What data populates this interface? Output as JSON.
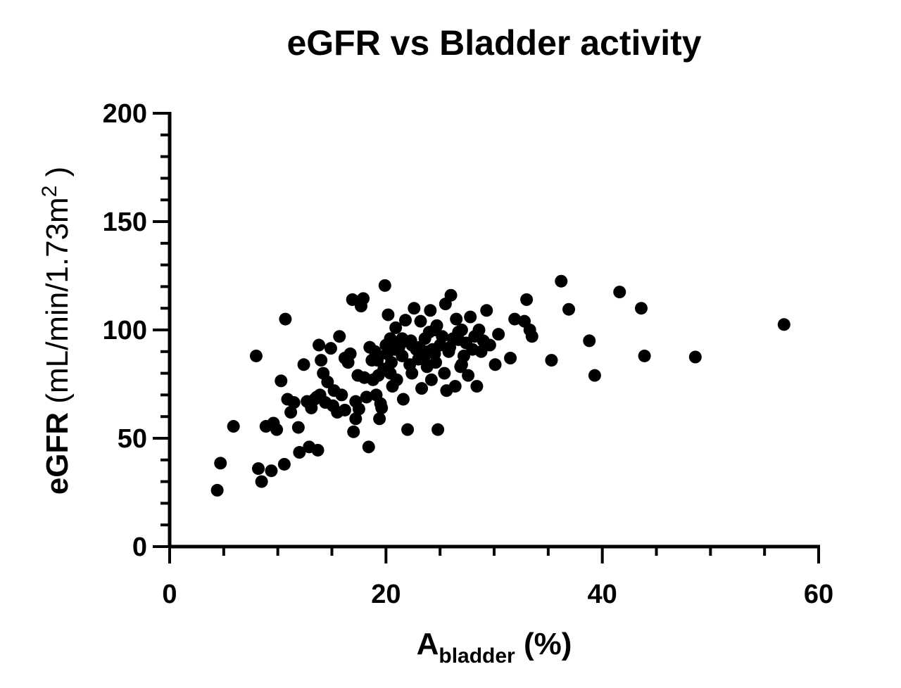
{
  "chart_data": {
    "type": "scatter",
    "title": "eGFR vs Bladder activity",
    "xlabel": {
      "main": "A",
      "sub": "bladder",
      "rest": " (%)"
    },
    "ylabel": {
      "bold": "eGFR",
      "rest": " (mL/min/1.73m",
      "sup": "2",
      "tail": " )"
    },
    "xlim": [
      0,
      60
    ],
    "ylim": [
      0,
      200
    ],
    "x_ticks": [
      0,
      20,
      40,
      60
    ],
    "y_ticks": [
      0,
      50,
      100,
      150,
      200
    ],
    "x_tick_labels": [
      "0",
      "20",
      "40",
      "60"
    ],
    "y_tick_labels": [
      "0",
      "50",
      "100",
      "150",
      "200"
    ],
    "grid": false,
    "legend": "none",
    "marker_color": "#000000",
    "points": [
      [
        4.4,
        26
      ],
      [
        4.7,
        38.5
      ],
      [
        5.9,
        55.5
      ],
      [
        8.0,
        88
      ],
      [
        8.2,
        36
      ],
      [
        8.5,
        30
      ],
      [
        8.9,
        55.5
      ],
      [
        9.4,
        35
      ],
      [
        9.6,
        57
      ],
      [
        9.9,
        54
      ],
      [
        10.3,
        76.5
      ],
      [
        10.6,
        38
      ],
      [
        10.7,
        105
      ],
      [
        10.9,
        68
      ],
      [
        11.2,
        62
      ],
      [
        11.5,
        66.5
      ],
      [
        11.9,
        55
      ],
      [
        12.0,
        43.5
      ],
      [
        12.4,
        84
      ],
      [
        12.7,
        67
      ],
      [
        12.9,
        46
      ],
      [
        13.1,
        64
      ],
      [
        13.4,
        68
      ],
      [
        13.7,
        44.5
      ],
      [
        13.8,
        93
      ],
      [
        13.9,
        70
      ],
      [
        14.0,
        86
      ],
      [
        14.2,
        80
      ],
      [
        14.4,
        66.5
      ],
      [
        14.6,
        76
      ],
      [
        14.9,
        91.5
      ],
      [
        15.2,
        72
      ],
      [
        15.5,
        62
      ],
      [
        15.7,
        97
      ],
      [
        15.9,
        70
      ],
      [
        16.2,
        63
      ],
      [
        16.5,
        85
      ],
      [
        16.7,
        89
      ],
      [
        16.9,
        114
      ],
      [
        17.0,
        53
      ],
      [
        17.2,
        67
      ],
      [
        17.4,
        79
      ],
      [
        17.5,
        63.5
      ],
      [
        17.7,
        111
      ],
      [
        17.9,
        114.5
      ],
      [
        18.0,
        78
      ],
      [
        18.2,
        69
      ],
      [
        18.4,
        46
      ],
      [
        18.5,
        92
      ],
      [
        18.7,
        86
      ],
      [
        18.8,
        77
      ],
      [
        19.0,
        90
      ],
      [
        19.1,
        70
      ],
      [
        19.3,
        79
      ],
      [
        19.4,
        59
      ],
      [
        19.5,
        66
      ],
      [
        19.6,
        64
      ],
      [
        19.8,
        82
      ],
      [
        19.9,
        120.5
      ],
      [
        20.0,
        93
      ],
      [
        20.1,
        89
      ],
      [
        20.2,
        107
      ],
      [
        20.4,
        96
      ],
      [
        20.5,
        85
      ],
      [
        20.6,
        74
      ],
      [
        20.8,
        91
      ],
      [
        20.9,
        101
      ],
      [
        21.0,
        77
      ],
      [
        21.2,
        92
      ],
      [
        21.4,
        94
      ],
      [
        21.5,
        88
      ],
      [
        21.6,
        68
      ],
      [
        21.8,
        104.5
      ],
      [
        22.0,
        54
      ],
      [
        22.2,
        84
      ],
      [
        22.3,
        95
      ],
      [
        22.4,
        80
      ],
      [
        22.6,
        110
      ],
      [
        22.8,
        91
      ],
      [
        23.0,
        86.5
      ],
      [
        23.1,
        92
      ],
      [
        23.2,
        104
      ],
      [
        23.3,
        73
      ],
      [
        23.5,
        87
      ],
      [
        23.6,
        96
      ],
      [
        23.8,
        83
      ],
      [
        24.0,
        99
      ],
      [
        24.1,
        109
      ],
      [
        24.2,
        77
      ],
      [
        24.3,
        91
      ],
      [
        24.5,
        89
      ],
      [
        24.6,
        85
      ],
      [
        24.7,
        102
      ],
      [
        24.8,
        54
      ],
      [
        25.0,
        93
      ],
      [
        25.2,
        97
      ],
      [
        25.4,
        80
      ],
      [
        25.5,
        112
      ],
      [
        25.6,
        72
      ],
      [
        25.8,
        90
      ],
      [
        26.0,
        116
      ],
      [
        26.2,
        96
      ],
      [
        26.4,
        74
      ],
      [
        26.5,
        105
      ],
      [
        26.7,
        99
      ],
      [
        26.9,
        83
      ],
      [
        27.0,
        100
      ],
      [
        27.2,
        88
      ],
      [
        27.4,
        94
      ],
      [
        27.6,
        79
      ],
      [
        27.8,
        106
      ],
      [
        28.0,
        91
      ],
      [
        28.2,
        97
      ],
      [
        28.4,
        74
      ],
      [
        28.6,
        100
      ],
      [
        28.8,
        90
      ],
      [
        29.0,
        95
      ],
      [
        29.3,
        109
      ],
      [
        29.6,
        93
      ],
      [
        30.1,
        84
      ],
      [
        30.4,
        98
      ],
      [
        31.5,
        87
      ],
      [
        31.9,
        105
      ],
      [
        32.8,
        104
      ],
      [
        33.0,
        114
      ],
      [
        33.3,
        100
      ],
      [
        33.5,
        97
      ],
      [
        35.3,
        86
      ],
      [
        36.2,
        122.5
      ],
      [
        36.9,
        109.5
      ],
      [
        38.8,
        95
      ],
      [
        39.3,
        79
      ],
      [
        41.6,
        117.5
      ],
      [
        43.6,
        110
      ],
      [
        43.9,
        88
      ],
      [
        48.6,
        87.5
      ],
      [
        56.8,
        102.5
      ],
      [
        16.2,
        87
      ],
      [
        17.2,
        59
      ],
      [
        20.4,
        80
      ],
      [
        22.4,
        93
      ],
      [
        23.9,
        90
      ],
      [
        24.5,
        100
      ],
      [
        25.9,
        92
      ],
      [
        27.0,
        84
      ],
      [
        15.1,
        65
      ],
      [
        13.6,
        69
      ],
      [
        21.5,
        96
      ],
      [
        26.7,
        95.5
      ],
      [
        19.2,
        86
      ]
    ]
  }
}
